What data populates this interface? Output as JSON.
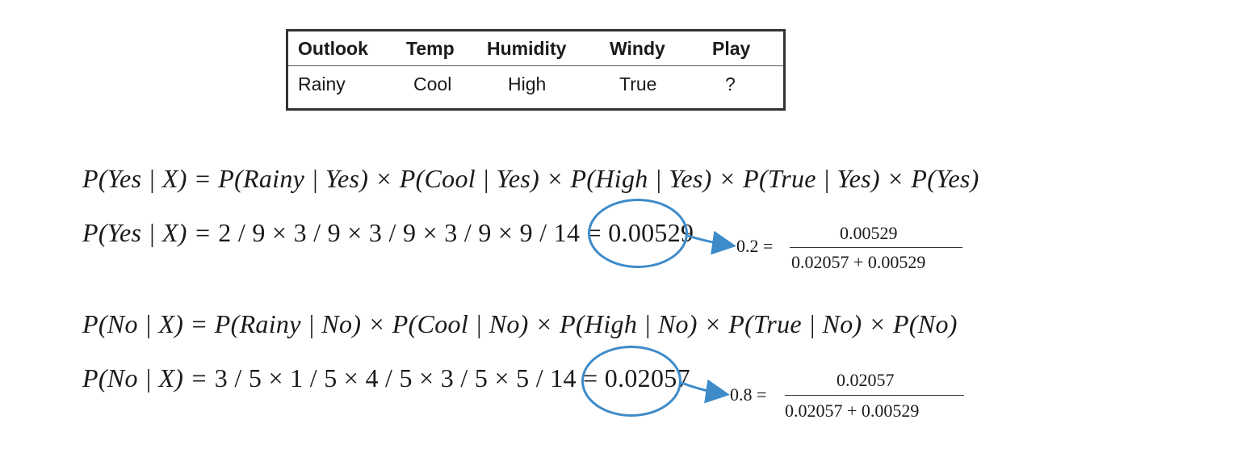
{
  "table": {
    "headers": [
      "Outlook",
      "Temp",
      "Humidity",
      "Windy",
      "Play"
    ],
    "row": [
      "Rainy",
      "Cool",
      "High",
      "True",
      "?"
    ]
  },
  "equations": {
    "yes_formula": {
      "lhs": "P(Yes | X) =",
      "rhs": "P(Rainy | Yes) × P(Cool | Yes) × P(High | Yes) × P(True | Yes) × P(Yes)"
    },
    "yes_values": {
      "lhs": "P(Yes | X) =",
      "rhs": "2 / 9 × 3 / 9 × 3 / 9 × 3 / 9 × 9 / 14 =",
      "result": "0.00529"
    },
    "no_formula": {
      "lhs": "P(No | X) =",
      "rhs": "P(Rainy | No) × P(Cool | No) × P(High | No) × P(True | No) × P(No)"
    },
    "no_values": {
      "lhs": "P(No | X) =",
      "rhs": "3 / 5 × 1 / 5 × 4 / 5 × 3 / 5 × 5 / 14 =",
      "result": "0.02057"
    }
  },
  "normalized": {
    "yes": {
      "value": "0.2 =",
      "numerator": "0.00529",
      "denominator": "0.02057  + 0.00529"
    },
    "no": {
      "value": "0.8 =",
      "numerator": "0.02057",
      "denominator": "0.02057 + 0.00529"
    }
  },
  "colors": {
    "highlight": "#3e8bc9",
    "table_border": "#333333"
  }
}
